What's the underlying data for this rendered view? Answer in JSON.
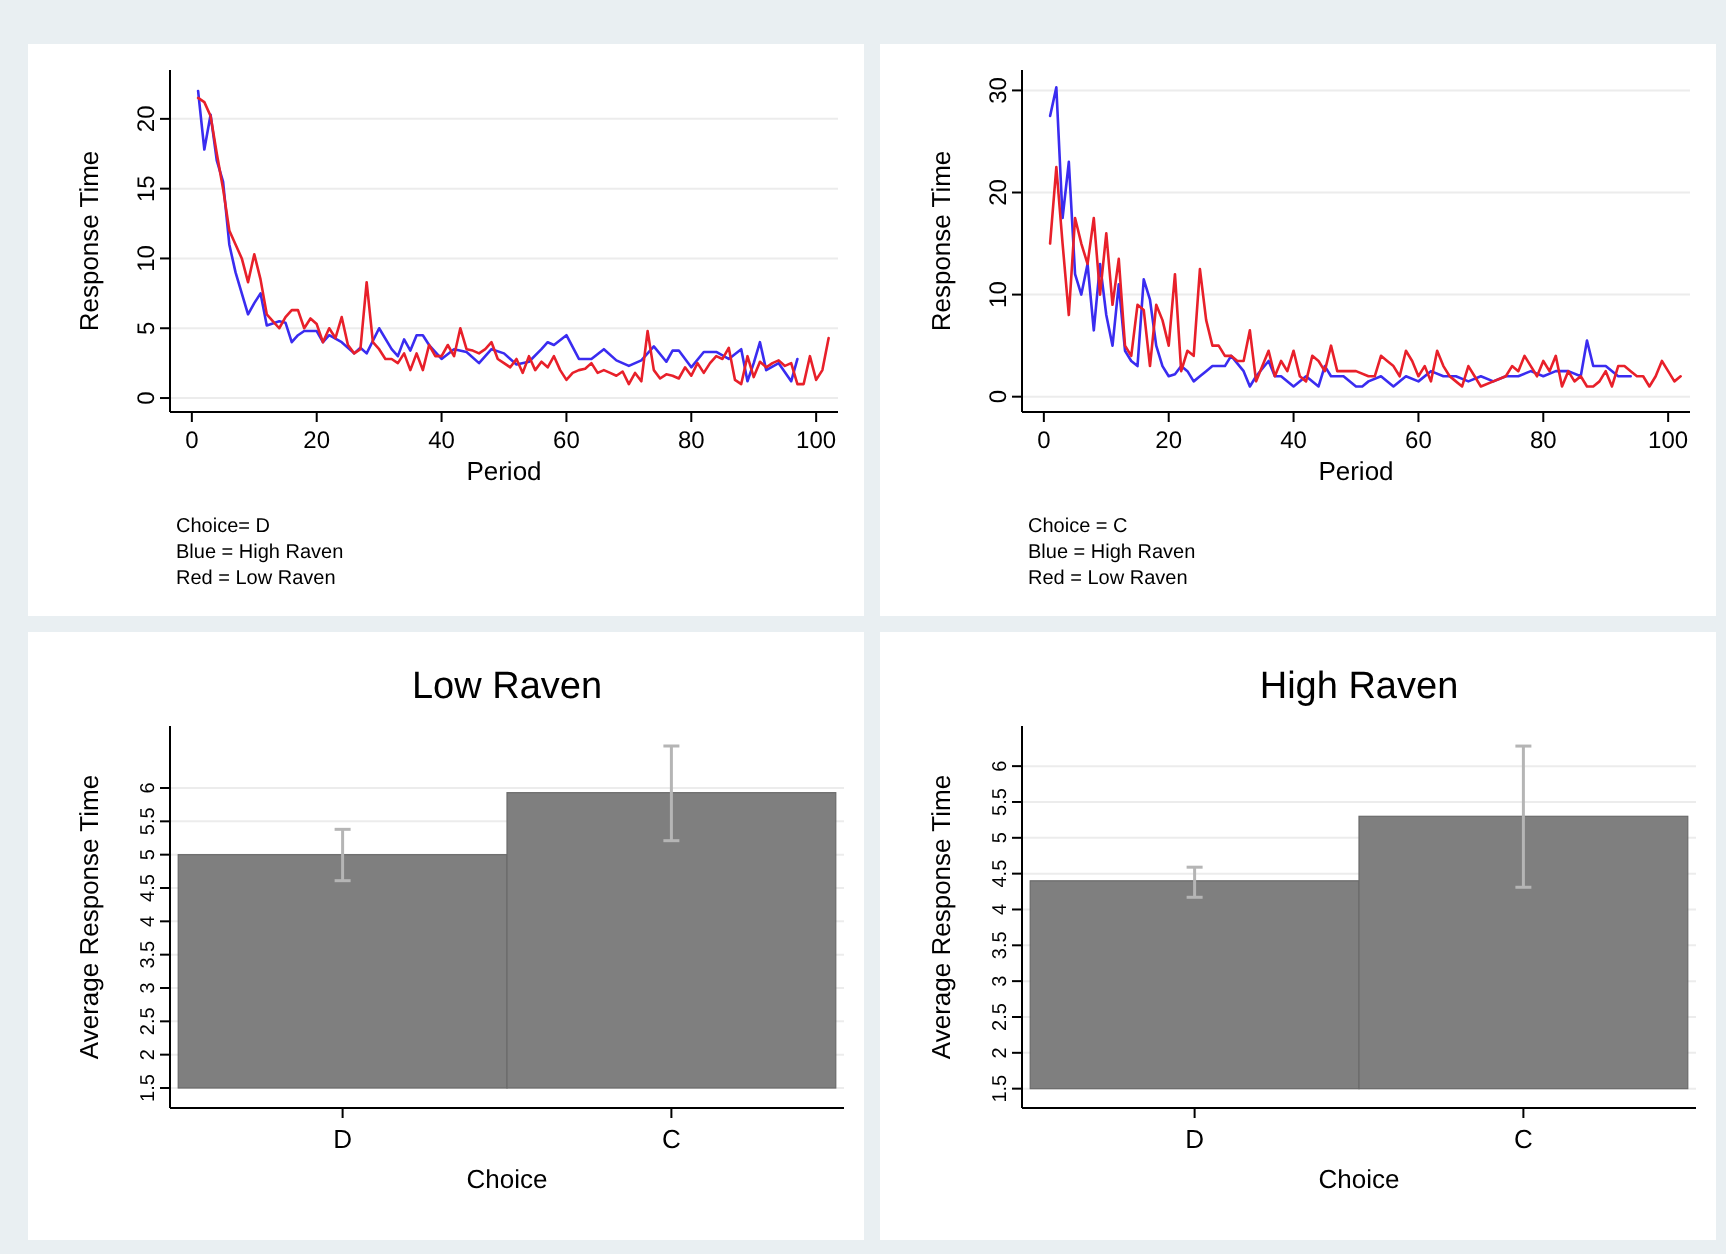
{
  "chart_data": [
    {
      "type": "line",
      "xlabel": "Period",
      "ylabel": "Response Time",
      "xlim": [
        -3.5,
        103.5
      ],
      "ylim": [
        -1,
        23.5
      ],
      "xticks": [
        0,
        20,
        40,
        60,
        80,
        100
      ],
      "yticks": [
        0,
        5,
        10,
        15,
        20
      ],
      "grid": "y",
      "annotations": [
        "Choice= D",
        "Blue = High Raven",
        "Red = Low Raven"
      ],
      "series": [
        {
          "color": "#3a2cf0",
          "x": [
            1,
            2,
            3,
            4,
            5,
            6,
            7,
            8,
            9,
            10,
            11,
            12,
            14,
            15,
            16,
            17,
            18,
            20,
            21,
            22,
            24,
            26,
            27,
            28,
            30,
            32,
            33,
            34,
            35,
            36,
            37,
            38,
            40,
            42,
            44,
            46,
            48,
            50,
            52,
            54,
            56,
            57,
            58,
            60,
            62,
            64,
            66,
            68,
            70,
            72,
            74,
            76,
            77,
            78,
            80,
            82,
            84,
            86,
            88,
            89,
            90,
            91,
            92,
            94,
            96,
            97
          ],
          "values": [
            22,
            17.8,
            20.3,
            17,
            15.5,
            11,
            9,
            7.5,
            6,
            6.8,
            7.5,
            5.2,
            5.5,
            5.4,
            4,
            4.5,
            4.8,
            4.8,
            4,
            4.5,
            4,
            3.2,
            3.6,
            3.2,
            5,
            3.5,
            3,
            4.2,
            3.4,
            4.5,
            4.5,
            3.8,
            2.8,
            3.5,
            3.3,
            2.5,
            3.5,
            3.2,
            2.4,
            2.6,
            3.5,
            4,
            3.8,
            4.5,
            2.8,
            2.8,
            3.5,
            2.7,
            2.3,
            2.7,
            3.7,
            2.6,
            3.4,
            3.4,
            2.2,
            3.3,
            3.3,
            2.8,
            3.5,
            1.2,
            2.5,
            4,
            2,
            2.5,
            1.2,
            2.8
          ]
        },
        {
          "color": "#e8202a",
          "x": [
            1,
            2,
            3,
            4,
            5,
            6,
            7,
            8,
            9,
            10,
            11,
            12,
            13,
            14,
            15,
            16,
            17,
            18,
            19,
            20,
            21,
            22,
            23,
            24,
            25,
            26,
            27,
            28,
            29,
            30,
            31,
            32,
            33,
            34,
            35,
            36,
            37,
            38,
            39,
            40,
            41,
            42,
            43,
            44,
            45,
            46,
            47,
            48,
            49,
            50,
            51,
            52,
            53,
            54,
            55,
            56,
            57,
            58,
            59,
            60,
            61,
            62,
            63,
            64,
            65,
            66,
            67,
            68,
            69,
            70,
            71,
            72,
            73,
            74,
            75,
            76,
            77,
            78,
            79,
            80,
            81,
            82,
            83,
            84,
            85,
            86,
            87,
            88,
            89,
            90,
            91,
            92,
            93,
            94,
            95,
            96,
            97,
            98,
            99,
            100,
            101,
            102
          ],
          "values": [
            21.5,
            21.2,
            20.2,
            17.5,
            15,
            12,
            11,
            10,
            8.3,
            10.3,
            8.5,
            6,
            5.5,
            5,
            5.8,
            6.3,
            6.3,
            5,
            5.7,
            5.3,
            4,
            5,
            4.3,
            5.8,
            3.8,
            3.2,
            3.5,
            8.3,
            4,
            3.5,
            2.8,
            2.8,
            2.5,
            3.2,
            2,
            3.2,
            2,
            3.8,
            3,
            3,
            3.8,
            3,
            5,
            3.5,
            3.4,
            3.2,
            3.5,
            4,
            2.8,
            2.5,
            2.2,
            2.8,
            1.8,
            3,
            2,
            2.6,
            2.2,
            3,
            2,
            1.3,
            1.8,
            2,
            2.1,
            2.5,
            1.8,
            2,
            1.8,
            1.6,
            1.9,
            1,
            1.8,
            1.2,
            4.8,
            2,
            1.4,
            1.7,
            1.6,
            1.4,
            2.2,
            1.6,
            2.5,
            1.8,
            2.5,
            3,
            2.8,
            3.6,
            1.3,
            1,
            3,
            1.5,
            2.6,
            2.2,
            2.5,
            2.7,
            2.3,
            2.5,
            1,
            1,
            3,
            1.3,
            2,
            4.3
          ]
        }
      ]
    },
    {
      "type": "line",
      "xlabel": "Period",
      "ylabel": "Response Time",
      "xlim": [
        -3.5,
        103.5
      ],
      "ylim": [
        -1.5,
        32
      ],
      "xticks": [
        0,
        20,
        40,
        60,
        80,
        100
      ],
      "yticks": [
        0,
        10,
        20,
        30
      ],
      "grid": "y",
      "annotations": [
        "Choice = C",
        "Blue = High Raven",
        "Red = Low Raven"
      ],
      "series": [
        {
          "color": "#3a2cf0",
          "x": [
            1,
            2,
            3,
            4,
            5,
            6,
            7,
            8,
            9,
            10,
            11,
            12,
            13,
            14,
            15,
            16,
            17,
            18,
            19,
            20,
            21,
            22,
            23,
            24,
            25,
            26,
            27,
            28,
            29,
            30,
            32,
            33,
            34,
            36,
            37,
            38,
            40,
            42,
            44,
            45,
            46,
            48,
            50,
            51,
            52,
            54,
            56,
            58,
            60,
            62,
            64,
            66,
            68,
            70,
            72,
            74,
            76,
            78,
            80,
            82,
            84,
            86,
            87,
            88,
            90,
            92,
            94
          ],
          "values": [
            27.5,
            30.3,
            17.5,
            23,
            12,
            10,
            13,
            6.5,
            13,
            8,
            5,
            11,
            4.5,
            3.5,
            3,
            11.5,
            9.5,
            5,
            3,
            2,
            2.2,
            3,
            2.5,
            1.5,
            2,
            2.5,
            3,
            3,
            3,
            4,
            2.5,
            1,
            2,
            3.5,
            2,
            2,
            1,
            2,
            1,
            3,
            2,
            2,
            1,
            1,
            1.5,
            2,
            1,
            2,
            1.5,
            2.5,
            2,
            2,
            1.5,
            2,
            1.5,
            2,
            2,
            2.5,
            2,
            2.5,
            2.5,
            2,
            5.5,
            3,
            3,
            2,
            2
          ]
        },
        {
          "color": "#e8202a",
          "x": [
            1,
            2,
            3,
            4,
            5,
            6,
            7,
            8,
            9,
            10,
            11,
            12,
            13,
            14,
            15,
            16,
            17,
            18,
            19,
            20,
            21,
            22,
            23,
            24,
            25,
            26,
            27,
            28,
            29,
            30,
            31,
            32,
            33,
            34,
            35,
            36,
            37,
            38,
            39,
            40,
            41,
            42,
            43,
            44,
            45,
            46,
            47,
            48,
            50,
            52,
            53,
            54,
            55,
            56,
            57,
            58,
            59,
            60,
            61,
            62,
            63,
            64,
            65,
            66,
            67,
            68,
            69,
            70,
            72,
            74,
            75,
            76,
            77,
            78,
            79,
            80,
            81,
            82,
            83,
            84,
            85,
            86,
            87,
            88,
            89,
            90,
            91,
            92,
            93,
            94,
            95,
            96,
            97,
            98,
            99,
            100,
            101,
            102
          ],
          "values": [
            15,
            22.5,
            15,
            8,
            17.5,
            15,
            13,
            17.5,
            10,
            16,
            9,
            13.5,
            5,
            4,
            9,
            8.5,
            3,
            9,
            7.5,
            5,
            12,
            2.5,
            4.5,
            4,
            12.5,
            7.5,
            5,
            5,
            4,
            4,
            3.5,
            3.5,
            6.5,
            1.5,
            3,
            4.5,
            2,
            3.5,
            2.5,
            4.5,
            2,
            1.5,
            4,
            3.5,
            2.5,
            5,
            2.5,
            2.5,
            2.5,
            2,
            2,
            4,
            3.5,
            3,
            2,
            4.5,
            3.5,
            2,
            3,
            1.5,
            4.5,
            3,
            2,
            1.5,
            1,
            3,
            2,
            1,
            1.5,
            2,
            3,
            2.5,
            4,
            3,
            2,
            3.5,
            2.5,
            4,
            1,
            2.5,
            1.5,
            2,
            1,
            1,
            1.5,
            2.5,
            1,
            3,
            3,
            2.5,
            2,
            2,
            1,
            2,
            3.5,
            2.5,
            1.5,
            2
          ]
        }
      ]
    },
    {
      "type": "bar",
      "title": "Low Raven",
      "xlabel": "Choice",
      "ylabel": "Average Response Time",
      "categories": [
        "D",
        "C"
      ],
      "base": [
        1.5,
        1.5
      ],
      "values": [
        3.5,
        4.43
      ],
      "errors": [
        [
          4.61,
          5.38
        ],
        [
          5.21,
          6.63
        ]
      ],
      "color": "#7f7f7f",
      "ylim": [
        1.2,
        6.93
      ],
      "yticks": [
        1.5,
        2,
        2.5,
        3,
        3.5,
        4,
        4.5,
        5,
        5.5,
        6
      ],
      "grid": "y"
    },
    {
      "type": "bar",
      "title": "High Raven",
      "xlabel": "Choice",
      "ylabel": "Average Response Time",
      "categories": [
        "D",
        "C"
      ],
      "base": [
        1.5,
        1.5
      ],
      "values": [
        2.9,
        3.8
      ],
      "errors": [
        [
          4.17,
          4.59
        ],
        [
          4.31,
          6.28
        ]
      ],
      "color": "#7f7f7f",
      "ylim": [
        1.23,
        6.56
      ],
      "yticks": [
        1.5,
        2,
        2.5,
        3,
        3.5,
        4,
        4.5,
        5,
        5.5,
        6
      ],
      "grid": "y"
    }
  ]
}
